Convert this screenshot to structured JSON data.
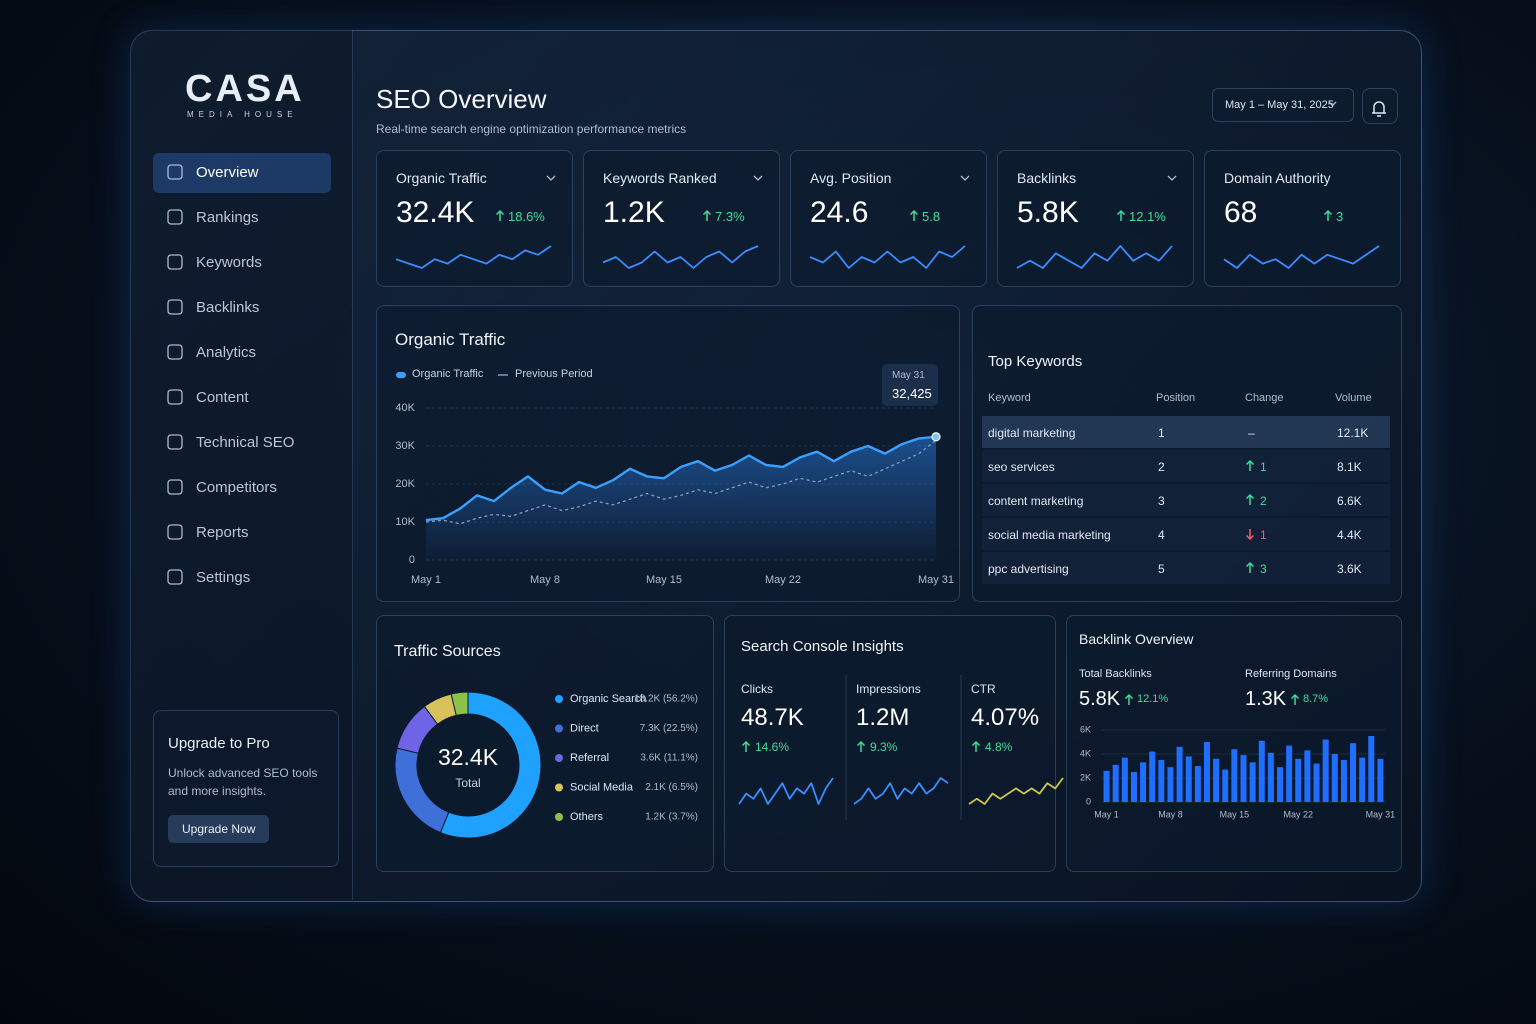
{
  "brand": {
    "name": "CASA",
    "tagline": "MEDIA HOUSE"
  },
  "nav": [
    "Overview",
    "Rankings",
    "Keywords",
    "Backlinks",
    "Analytics",
    "Content",
    "Technical SEO",
    "Competitors",
    "Reports",
    "Settings"
  ],
  "upgrade": {
    "title": "Upgrade to Pro",
    "text": "Unlock advanced SEO tools and more insights.",
    "button": "Upgrade Now"
  },
  "header": {
    "title": "SEO Overview",
    "subtitle": "Real-time search engine optimization performance metrics",
    "date_range": "May 1 – May 31, 2025"
  },
  "kpis": [
    {
      "title": "Organic Traffic",
      "value": "32.4K",
      "change": "18.6%",
      "trend": [
        5,
        4,
        3,
        5,
        4,
        6,
        5,
        4,
        6,
        5,
        7,
        6,
        8
      ]
    },
    {
      "title": "Keywords Ranked",
      "value": "1.2K",
      "change": "7.3%",
      "trend": [
        4,
        5,
        3,
        4,
        6,
        4,
        5,
        3,
        5,
        6,
        4,
        6,
        7
      ]
    },
    {
      "title": "Avg. Position",
      "value": "24.6",
      "change": "5.8",
      "trend": [
        5,
        4,
        6,
        3,
        5,
        4,
        6,
        4,
        5,
        3,
        6,
        5,
        7
      ]
    },
    {
      "title": "Backlinks",
      "value": "5.8K",
      "change": "12.1%",
      "trend": [
        4,
        5,
        4,
        6,
        5,
        4,
        6,
        5,
        7,
        5,
        6,
        5,
        7
      ]
    },
    {
      "title": "Domain Authority",
      "value": "68",
      "change": "3",
      "trend": [
        5,
        3,
        6,
        4,
        5,
        3,
        6,
        4,
        6,
        5,
        4,
        6,
        8
      ]
    }
  ],
  "top_keywords": {
    "title": "Top Keywords",
    "columns": [
      "Keyword",
      "Position",
      "Change",
      "Volume"
    ],
    "rows": [
      {
        "keyword": "digital marketing",
        "position": "1",
        "change": "–",
        "volume": "12.1K"
      },
      {
        "keyword": "seo services",
        "position": "2",
        "change": "1",
        "volume": "8.1K",
        "direction": "up"
      },
      {
        "keyword": "content marketing",
        "position": "3",
        "change": "2",
        "volume": "6.6K",
        "direction": "up"
      },
      {
        "keyword": "social media marketing",
        "position": "4",
        "change": "1",
        "volume": "4.4K",
        "direction": "down"
      },
      {
        "keyword": "ppc advertising",
        "position": "5",
        "change": "3",
        "volume": "3.6K",
        "direction": "up"
      }
    ]
  },
  "search_console": {
    "title": "Search Console Insights",
    "metrics": [
      {
        "label": "Clicks",
        "value": "48.7K",
        "change": "14.6%",
        "color": "#3a8dff",
        "trend": [
          3,
          5,
          4,
          6,
          3,
          5,
          7,
          4,
          6,
          5,
          7,
          3,
          6,
          8
        ]
      },
      {
        "label": "Impressions",
        "value": "1.2M",
        "change": "9.3%",
        "color": "#3a8dff",
        "trend": [
          3,
          4,
          6,
          4,
          5,
          7,
          4,
          6,
          5,
          7,
          5,
          6,
          8,
          7
        ]
      },
      {
        "label": "CTR",
        "value": "4.07%",
        "change": "4.8%",
        "color": "#c8c84a",
        "trend": [
          3,
          4,
          3,
          5,
          4,
          5,
          6,
          5,
          6,
          5,
          7,
          6,
          8
        ]
      }
    ]
  },
  "backlink_overview": {
    "title": "Backlink Overview",
    "metrics": [
      {
        "label": "Total Backlinks",
        "value": "5.8K",
        "change": "12.1%"
      },
      {
        "label": "Referring Domains",
        "value": "1.3K",
        "change": "8.7%"
      }
    ]
  },
  "chart_data": [
    {
      "type": "line",
      "title": "Organic Traffic",
      "categories": [
        "May 1",
        null,
        null,
        null,
        null,
        null,
        null,
        "May 8",
        null,
        null,
        null,
        null,
        null,
        null,
        "May 15",
        null,
        null,
        null,
        null,
        null,
        null,
        "May 22",
        null,
        null,
        null,
        null,
        null,
        null,
        null,
        null,
        "May 31"
      ],
      "series": [
        {
          "name": "Organic Traffic",
          "color": "#3aa0ff",
          "values": [
            10500,
            11000,
            13500,
            17000,
            15500,
            19000,
            22000,
            18500,
            17500,
            20500,
            19000,
            21000,
            24000,
            22000,
            21500,
            24500,
            26000,
            23500,
            25000,
            27500,
            25000,
            24500,
            27000,
            28500,
            26000,
            28500,
            30000,
            28000,
            30500,
            32000,
            32425
          ]
        },
        {
          "name": "Previous Period",
          "color": "#7f9cc4",
          "values": [
            10000,
            10500,
            9500,
            11000,
            12000,
            11500,
            13000,
            14500,
            13000,
            14000,
            15500,
            14500,
            16000,
            17500,
            16000,
            17000,
            18500,
            17500,
            19000,
            20500,
            19000,
            20000,
            21500,
            20500,
            22000,
            23500,
            22000,
            24000,
            26000,
            28000,
            31500
          ]
        }
      ],
      "ylim": [
        0,
        40000
      ],
      "yticks": [
        0,
        {
          "value": 10000,
          "label": "10K"
        },
        {
          "value": 20000,
          "label": "20K"
        },
        {
          "value": 30000,
          "label": "30K"
        },
        {
          "value": 40000,
          "label": "40K"
        }
      ],
      "tooltip": {
        "label": "May 31",
        "value": "32,425"
      },
      "grid": true
    },
    {
      "type": "pie",
      "title": "Traffic Sources",
      "center_value": "32.4K",
      "center_label": "Total",
      "categories": [
        "Organic Search",
        "Direct",
        "Referral",
        "Social Media",
        "Others"
      ],
      "values": [
        18200,
        7300,
        3600,
        2100,
        1200
      ],
      "value_labels": [
        "18.2K (56.2%)",
        "7.3K (22.5%)",
        "3.6K (11.1%)",
        "2.1K (6.5%)",
        "1.2K (3.7%)"
      ],
      "colors": [
        "#1fa2ff",
        "#3f6fd8",
        "#6f63e6",
        "#d9c25a",
        "#8cc24a"
      ]
    },
    {
      "type": "bar",
      "categories": [
        "May 1",
        null,
        null,
        null,
        null,
        null,
        null,
        "May 8",
        null,
        null,
        null,
        null,
        null,
        null,
        "May 15",
        null,
        null,
        null,
        null,
        null,
        null,
        "May 22",
        null,
        null,
        null,
        null,
        null,
        null,
        null,
        null,
        "May 31"
      ],
      "values": [
        2600,
        3100,
        3700,
        2500,
        3300,
        4200,
        3500,
        2900,
        4600,
        3800,
        3000,
        5000,
        3600,
        2700,
        4400,
        3900,
        3300,
        5100,
        4100,
        2900,
        4700,
        3600,
        4300,
        3200,
        5200,
        4000,
        3500,
        4900,
        3700,
        5500,
        3600
      ],
      "color": "#1f6fff",
      "ylim": [
        0,
        6000
      ],
      "yticks": [
        0,
        {
          "value": 2000,
          "label": "2K"
        },
        {
          "value": 4000,
          "label": "4K"
        },
        {
          "value": 6000,
          "label": "6K"
        }
      ]
    }
  ]
}
